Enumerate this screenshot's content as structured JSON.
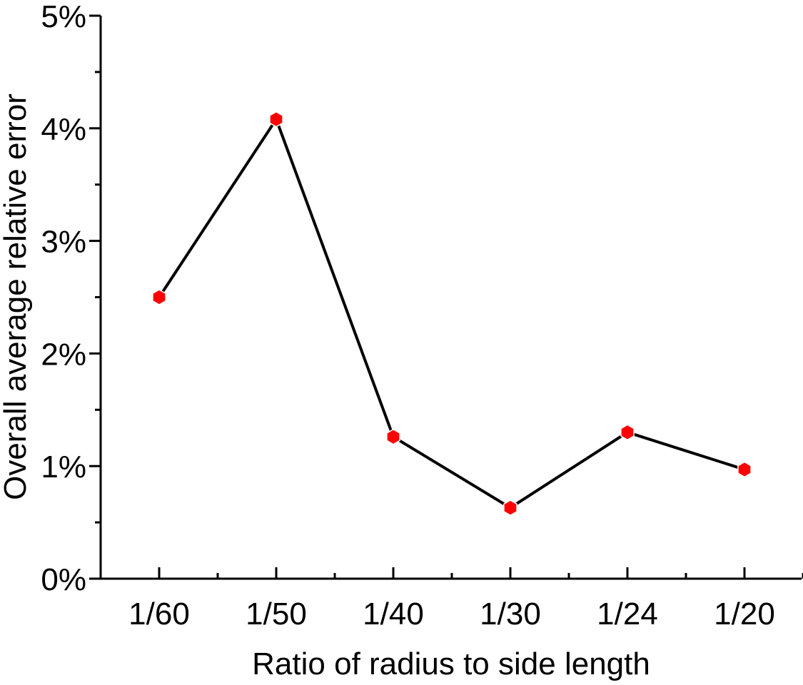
{
  "chart_data": {
    "type": "line",
    "categories": [
      "1/60",
      "1/50",
      "1/40",
      "1/30",
      "1/24",
      "1/20"
    ],
    "values": [
      2.5,
      4.08,
      1.26,
      0.63,
      1.3,
      0.97
    ],
    "y_unit": "%",
    "ylim": [
      0,
      5
    ],
    "yticks": [
      "0%",
      "1%",
      "2%",
      "3%",
      "4%",
      "5%"
    ],
    "xlabel": "Ratio of radius to side length",
    "ylabel": "Overall average relative error",
    "grid": false,
    "legend": "none",
    "colors": {
      "line": "#000000",
      "marker": "#ff0000",
      "axis": "#000000"
    },
    "marker_shape": "hexagon-icon"
  }
}
